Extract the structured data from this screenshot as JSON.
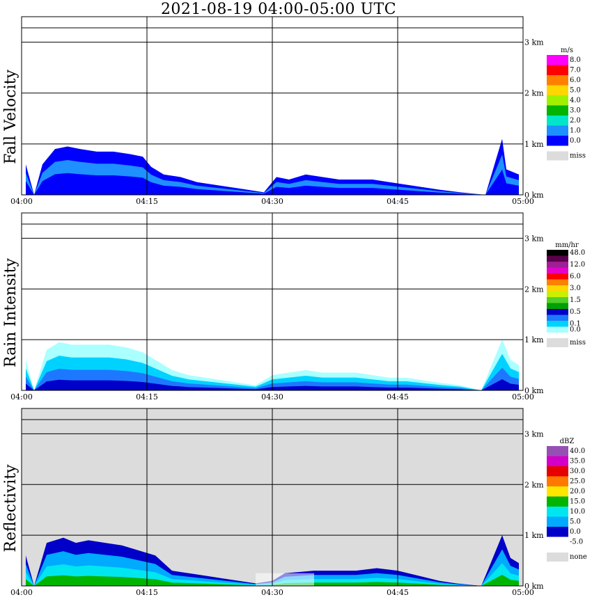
{
  "title": "2021-08-19   04:00-05:00 UTC",
  "x_ticks": [
    "04:00",
    "04:15",
    "04:30",
    "04:45",
    "05:00"
  ],
  "height_ticks": [
    "0 km",
    "1 km",
    "2 km",
    "3 km"
  ],
  "panels": [
    {
      "ylabel": "Fall Velocity",
      "unit": "m/s",
      "scale": [
        {
          "label": "8.0",
          "color": "#ff00ff"
        },
        {
          "label": "7.0",
          "color": "#ff0000"
        },
        {
          "label": "6.0",
          "color": "#ff8000"
        },
        {
          "label": "5.0",
          "color": "#ffd700"
        },
        {
          "label": "4.0",
          "color": "#a0f000"
        },
        {
          "label": "3.0",
          "color": "#00b400"
        },
        {
          "label": "2.0",
          "color": "#00e6c8"
        },
        {
          "label": "1.0",
          "color": "#1e90ff"
        },
        {
          "label": "0.0",
          "color": "#0000ff"
        }
      ],
      "bottom_colors": [
        "#0000ff",
        "#0018e0"
      ],
      "missing_label": "miss",
      "missing_color": "#dcdcdc",
      "background": "#ffffff"
    },
    {
      "ylabel": "Rain Intensity",
      "unit": "mm/hr",
      "scale": [
        {
          "label": "48.0",
          "color": "#000000"
        },
        {
          "label": "",
          "color": "#5a004a"
        },
        {
          "label": "12.0",
          "color": "#a01e96"
        },
        {
          "label": "",
          "color": "#e600c8"
        },
        {
          "label": "6.0",
          "color": "#ff0000"
        },
        {
          "label": "",
          "color": "#ff8000"
        },
        {
          "label": "3.0",
          "color": "#ffd700"
        },
        {
          "label": "",
          "color": "#c8f000"
        },
        {
          "label": "1.5",
          "color": "#50d028"
        },
        {
          "label": "",
          "color": "#00a000"
        },
        {
          "label": "0.5",
          "color": "#0000c8"
        },
        {
          "label": "",
          "color": "#1e78ff"
        },
        {
          "label": "0.1",
          "color": "#00d2ff"
        },
        {
          "label": "0.0",
          "color": "#aaffff"
        }
      ],
      "missing_label": "miss",
      "missing_color": "#dcdcdc",
      "background": "#ffffff"
    },
    {
      "ylabel": "Reflectivity",
      "unit": "dBZ",
      "scale": [
        {
          "label": "40.0",
          "color": "#9650b4"
        },
        {
          "label": "35.0",
          "color": "#d200c8"
        },
        {
          "label": "30.0",
          "color": "#e60000"
        },
        {
          "label": "25.0",
          "color": "#ff7800"
        },
        {
          "label": "20.0",
          "color": "#ffe600"
        },
        {
          "label": "15.0",
          "color": "#00b400"
        },
        {
          "label": "10.0",
          "color": "#00e6f0"
        },
        {
          "label": "5.0",
          "color": "#00aaff"
        },
        {
          "label": "0.0",
          "color": "#0000c8"
        },
        {
          "label": "-5.0",
          "color": "#ffffff"
        }
      ],
      "missing_label": "none",
      "missing_color": "#dcdcdc",
      "background": "#dcdcdc"
    }
  ],
  "chart_data": {
    "type": "heatmap",
    "x_unit": "UTC time",
    "x_range": [
      "04:00",
      "05:00"
    ],
    "y_unit": "km",
    "y_range": [
      0,
      3.5
    ],
    "grid": true,
    "legend_position": "right",
    "series": [
      {
        "name": "Fall Velocity",
        "echo_top_km": [
          [
            0.5,
            0.6
          ],
          [
            1.5,
            0.0
          ],
          [
            2.5,
            0.6
          ],
          [
            4.0,
            0.9
          ],
          [
            5.5,
            0.95
          ],
          [
            7.0,
            0.9
          ],
          [
            9.0,
            0.85
          ],
          [
            11.0,
            0.85
          ],
          [
            13.0,
            0.8
          ],
          [
            14.5,
            0.75
          ],
          [
            15.5,
            0.55
          ],
          [
            17.0,
            0.4
          ],
          [
            19.0,
            0.35
          ],
          [
            21.0,
            0.25
          ],
          [
            23.0,
            0.2
          ],
          [
            25.0,
            0.15
          ],
          [
            27.0,
            0.1
          ],
          [
            29.0,
            0.05
          ],
          [
            30.5,
            0.35
          ],
          [
            32.0,
            0.3
          ],
          [
            34.0,
            0.4
          ],
          [
            36.0,
            0.35
          ],
          [
            38.0,
            0.3
          ],
          [
            40.0,
            0.3
          ],
          [
            42.0,
            0.3
          ],
          [
            44.0,
            0.25
          ],
          [
            46.0,
            0.2
          ],
          [
            48.0,
            0.15
          ],
          [
            50.0,
            0.1
          ],
          [
            52.5,
            0.05
          ],
          [
            55.5,
            0.0
          ],
          [
            57.5,
            1.1
          ],
          [
            58.0,
            0.5
          ],
          [
            59.5,
            0.4
          ]
        ]
      },
      {
        "name": "Rain Intensity",
        "echo_top_km": [
          [
            0.5,
            0.6
          ],
          [
            1.5,
            0.0
          ],
          [
            3.0,
            0.8
          ],
          [
            4.5,
            0.95
          ],
          [
            6.0,
            0.9
          ],
          [
            8.0,
            0.9
          ],
          [
            10.5,
            0.9
          ],
          [
            12.5,
            0.85
          ],
          [
            14.5,
            0.75
          ],
          [
            16.0,
            0.6
          ],
          [
            18.0,
            0.4
          ],
          [
            20.0,
            0.3
          ],
          [
            22.0,
            0.25
          ],
          [
            24.0,
            0.2
          ],
          [
            26.0,
            0.15
          ],
          [
            28.0,
            0.1
          ],
          [
            30.0,
            0.3
          ],
          [
            32.0,
            0.35
          ],
          [
            34.0,
            0.4
          ],
          [
            36.0,
            0.35
          ],
          [
            38.0,
            0.35
          ],
          [
            40.0,
            0.35
          ],
          [
            42.0,
            0.3
          ],
          [
            44.0,
            0.25
          ],
          [
            46.0,
            0.25
          ],
          [
            48.0,
            0.2
          ],
          [
            50.0,
            0.15
          ],
          [
            52.5,
            0.1
          ],
          [
            55.0,
            0.0
          ],
          [
            57.5,
            1.0
          ],
          [
            58.5,
            0.6
          ],
          [
            59.5,
            0.5
          ]
        ]
      },
      {
        "name": "Reflectivity",
        "echo_top_km": [
          [
            0.5,
            0.6
          ],
          [
            1.5,
            0.0
          ],
          [
            3.0,
            0.85
          ],
          [
            5.0,
            0.95
          ],
          [
            6.5,
            0.85
          ],
          [
            8.0,
            0.9
          ],
          [
            10.0,
            0.85
          ],
          [
            12.0,
            0.8
          ],
          [
            14.0,
            0.7
          ],
          [
            16.0,
            0.6
          ],
          [
            18.0,
            0.3
          ],
          [
            20.0,
            0.25
          ],
          [
            22.0,
            0.2
          ],
          [
            24.0,
            0.15
          ],
          [
            26.0,
            0.1
          ],
          [
            28.0,
            0.05
          ],
          [
            30.0,
            0.1
          ],
          [
            31.5,
            0.25
          ],
          [
            35.0,
            0.3
          ],
          [
            37.5,
            0.3
          ],
          [
            40.0,
            0.3
          ],
          [
            42.5,
            0.35
          ],
          [
            45.0,
            0.3
          ],
          [
            47.5,
            0.2
          ],
          [
            50.0,
            0.1
          ],
          [
            52.0,
            0.05
          ],
          [
            55.0,
            0.0
          ],
          [
            57.5,
            1.0
          ],
          [
            58.5,
            0.55
          ],
          [
            59.5,
            0.45
          ]
        ]
      }
    ]
  }
}
